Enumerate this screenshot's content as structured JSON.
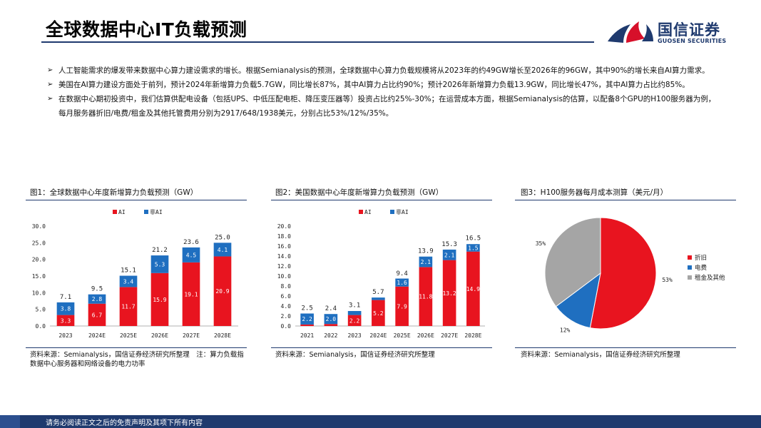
{
  "page": {
    "title": "全球数据中心IT负载预测",
    "bullets": [
      "人工智能需求的爆发带来数据中心算力建设需求的增长。根据Semianalysis的预测，全球数据中心算力负载规模将从2023年的约49GW增长至2026年的96GW，其中90%的增长来自AI算力需求。",
      "美国在AI算力建设方面处于前列，预计2024年新增算力负载5.7GW，同比增长87%，其中AI算力占比约90%；预计2026年新增算力负载13.9GW，同比增长47%，其中AI算力占比约85%。",
      "在数据中心期初投资中，我们估算供配电设备（包括UPS、中低压配电柜、降压变压器等）投资占比约25%-30%；在运营成本方面，根据Semianalysis的估算，以配备8个GPU的H100服务器为例，每月服务器折旧/电费/租金及其他托管费用分别为2917/648/1938美元，分别占比53%/12%/35%。"
    ],
    "footer": "请务必阅读正文之后的免责声明及其项下所有内容"
  },
  "logo": {
    "name_cn": "国信证券",
    "name_en": "GUOSEN SECURITIES",
    "colors": {
      "navy": "#1f3a6e",
      "red": "#d7102a"
    }
  },
  "figures": [
    {
      "caption": "图1：全球数据中心年度新增算力负载预测（GW）",
      "source": "资料来源：Semianalysis，国信证券经济研究所整理　注：算力负载指数据中心服务器和网络设备的电力功率"
    },
    {
      "caption": "图2：美国数据中心年度新增算力负载预测（GW）",
      "source": "资料来源：Semianalysis，国信证券经济研究所整理"
    },
    {
      "caption": "图3：H100服务器每月成本测算（美元/月）",
      "source": "资料来源：Semianalysis，国信证券经济研究所整理"
    }
  ],
  "chart_data": [
    {
      "type": "bar",
      "stacked": true,
      "categories": [
        "2023",
        "2024E",
        "2025E",
        "2026E",
        "2027E",
        "2028E"
      ],
      "series": [
        {
          "name": "AI",
          "color": "#e8141f",
          "values": [
            3.3,
            6.7,
            11.7,
            15.9,
            19.1,
            20.9
          ]
        },
        {
          "name": "非AI",
          "color": "#1f6fc0",
          "values": [
            3.8,
            2.8,
            3.4,
            5.3,
            4.5,
            4.1
          ]
        }
      ],
      "totals": [
        7.1,
        9.5,
        15.1,
        21.2,
        23.6,
        25.0
      ],
      "ylim": [
        0,
        30
      ],
      "yticks": [
        0,
        5,
        10,
        15,
        20,
        25,
        30
      ],
      "ytick_labels": [
        "0.0",
        "5.0",
        "10.0",
        "15.0",
        "20.0",
        "25.0",
        "30.0"
      ],
      "legend_position": "top"
    },
    {
      "type": "bar",
      "stacked": true,
      "categories": [
        "2021",
        "2022",
        "2023",
        "2024E",
        "2025E",
        "2026E",
        "2027E",
        "2028E"
      ],
      "series": [
        {
          "name": "AI",
          "color": "#e8141f",
          "values": [
            0.3,
            0.4,
            2.2,
            5.2,
            7.9,
            11.8,
            13.2,
            14.9
          ]
        },
        {
          "name": "非AI",
          "color": "#1f6fc0",
          "values": [
            2.2,
            2.0,
            0.8,
            0.5,
            1.6,
            2.1,
            2.1,
            1.5
          ]
        }
      ],
      "totals": [
        2.5,
        2.4,
        3.1,
        5.7,
        9.4,
        13.9,
        15.3,
        16.5
      ],
      "ylim": [
        0,
        20
      ],
      "yticks": [
        0,
        2,
        4,
        6,
        8,
        10,
        12,
        14,
        16,
        18,
        20
      ],
      "ytick_labels": [
        "0.0",
        "2.0",
        "4.0",
        "6.0",
        "8.0",
        "10.0",
        "12.0",
        "14.0",
        "16.0",
        "18.0",
        "20.0"
      ],
      "legend_position": "top"
    },
    {
      "type": "pie",
      "slices": [
        {
          "name": "折旧",
          "value": 2917,
          "pct_label": "53%",
          "color": "#e8141f"
        },
        {
          "name": "电费",
          "value": 648,
          "pct_label": "12%",
          "color": "#1f6fc0"
        },
        {
          "name": "租金及其他",
          "value": 1938,
          "pct_label": "35%",
          "color": "#a5a5a5"
        }
      ],
      "legend_position": "right"
    }
  ]
}
